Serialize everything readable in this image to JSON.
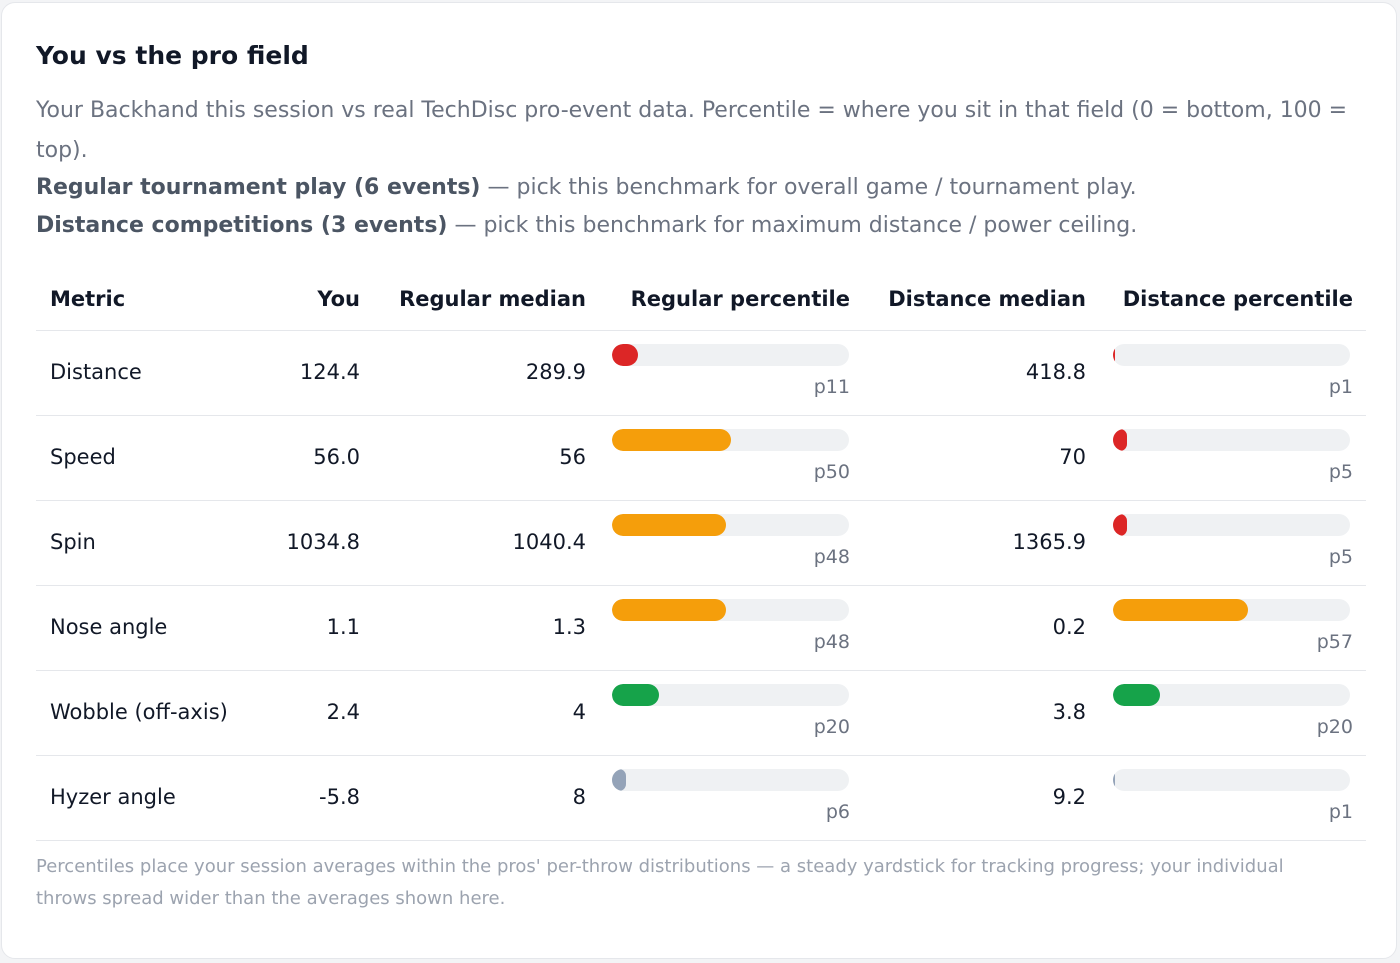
{
  "panel": {
    "title": "You vs the pro field",
    "intro": "Your Backhand this session vs real TechDisc pro-event data. Percentile = where you sit in that field (0 = bottom, 100 = top).",
    "benchmarks": [
      {
        "label": "Regular tournament play (6 events)",
        "desc": " — pick this benchmark for overall game / tournament play."
      },
      {
        "label": "Distance competitions (3 events)",
        "desc": " — pick this benchmark for maximum distance / power ceiling."
      }
    ],
    "footnote": "Percentiles place your session averages within the pros' per-throw distributions — a steady yardstick for tracking progress; your individual throws spread wider than the averages shown here."
  },
  "colors": {
    "red": "#dc2626",
    "orange": "#f59e0b",
    "green": "#16a34a",
    "gray": "#94a3b8",
    "track": "#eff1f3"
  },
  "table": {
    "headers": {
      "metric": "Metric",
      "you": "You",
      "regular_median": "Regular median",
      "regular_percentile": "Regular percentile",
      "distance_median": "Distance median",
      "distance_percentile": "Distance percentile"
    },
    "rows": [
      {
        "metric": "Distance",
        "you": "124.4",
        "regular_median": "289.9",
        "regular_pct": 11,
        "regular_pct_label": "p11",
        "regular_color": "red",
        "distance_median": "418.8",
        "distance_pct": 1,
        "distance_pct_label": "p1",
        "distance_color": "red"
      },
      {
        "metric": "Speed",
        "you": "56.0",
        "regular_median": "56",
        "regular_pct": 50,
        "regular_pct_label": "p50",
        "regular_color": "orange",
        "distance_median": "70",
        "distance_pct": 5,
        "distance_pct_label": "p5",
        "distance_color": "red"
      },
      {
        "metric": "Spin",
        "you": "1034.8",
        "regular_median": "1040.4",
        "regular_pct": 48,
        "regular_pct_label": "p48",
        "regular_color": "orange",
        "distance_median": "1365.9",
        "distance_pct": 5,
        "distance_pct_label": "p5",
        "distance_color": "red"
      },
      {
        "metric": "Nose angle",
        "you": "1.1",
        "regular_median": "1.3",
        "regular_pct": 48,
        "regular_pct_label": "p48",
        "regular_color": "orange",
        "distance_median": "0.2",
        "distance_pct": 57,
        "distance_pct_label": "p57",
        "distance_color": "orange"
      },
      {
        "metric": "Wobble (off-axis)",
        "you": "2.4",
        "regular_median": "4",
        "regular_pct": 20,
        "regular_pct_label": "p20",
        "regular_color": "green",
        "distance_median": "3.8",
        "distance_pct": 20,
        "distance_pct_label": "p20",
        "distance_color": "green"
      },
      {
        "metric": "Hyzer angle",
        "you": "-5.8",
        "regular_median": "8",
        "regular_pct": 6,
        "regular_pct_label": "p6",
        "regular_color": "gray",
        "distance_median": "9.2",
        "distance_pct": 1,
        "distance_pct_label": "p1",
        "distance_color": "gray"
      }
    ]
  }
}
